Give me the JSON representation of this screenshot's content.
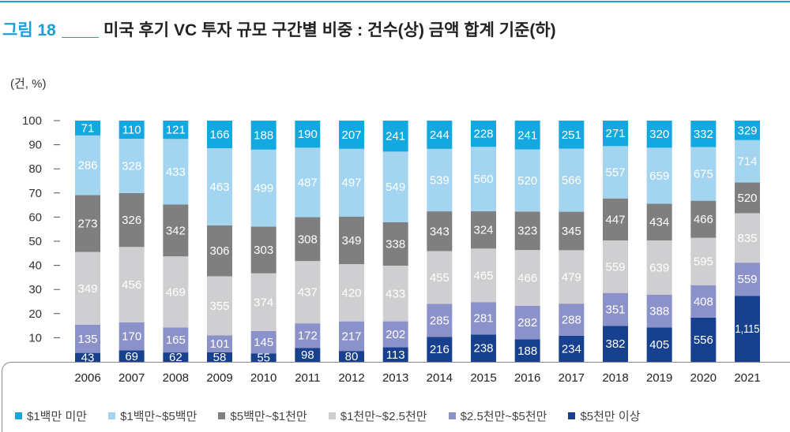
{
  "header": {
    "figure_label": "그림 18",
    "title": "미국 후기 VC 투자 규모 구간별 비중 : 건수(상) 금액 합계 기준(하)",
    "accent_color": "#1ba0d8"
  },
  "chart_data": {
    "type": "bar",
    "stacking": "percent",
    "unit_label": "(건, %)",
    "categories": [
      "2006",
      "2007",
      "2008",
      "2009",
      "2010",
      "2011",
      "2012",
      "2013",
      "2014",
      "2015",
      "2016",
      "2017",
      "2018",
      "2019",
      "2020",
      "2021"
    ],
    "ylim": [
      0,
      100
    ],
    "yticks": [
      10,
      20,
      30,
      40,
      50,
      60,
      70,
      80,
      90,
      100
    ],
    "grid": false,
    "legend_position": "bottom",
    "series": [
      {
        "name": "$1백만 미만",
        "color": "#14a8e0",
        "values": [
          71,
          110,
          121,
          166,
          188,
          190,
          207,
          241,
          244,
          228,
          241,
          251,
          271,
          320,
          332,
          329
        ]
      },
      {
        "name": "$1백만~$5백만",
        "color": "#a3d5f0",
        "values": [
          286,
          328,
          433,
          463,
          499,
          487,
          497,
          549,
          539,
          560,
          520,
          566,
          557,
          659,
          675,
          714
        ]
      },
      {
        "name": "$5백만~$1천만",
        "color": "#7f7f7f",
        "values": [
          273,
          326,
          342,
          306,
          303,
          308,
          349,
          338,
          343,
          324,
          323,
          345,
          447,
          434,
          466,
          520
        ]
      },
      {
        "name": "$1천만~$2.5천만",
        "color": "#cfcfd1",
        "values": [
          349,
          456,
          469,
          355,
          374,
          437,
          420,
          433,
          455,
          465,
          466,
          479,
          559,
          639,
          595,
          835
        ]
      },
      {
        "name": "$2.5천만~$5천만",
        "color": "#8b91c9",
        "values": [
          135,
          170,
          165,
          101,
          145,
          172,
          217,
          202,
          285,
          281,
          282,
          288,
          351,
          388,
          408,
          559
        ]
      },
      {
        "name": "$5천만 이상",
        "color": "#17408e",
        "values": [
          43,
          69,
          62,
          58,
          55,
          98,
          80,
          113,
          216,
          238,
          188,
          234,
          382,
          405,
          556,
          1115
        ]
      }
    ]
  }
}
